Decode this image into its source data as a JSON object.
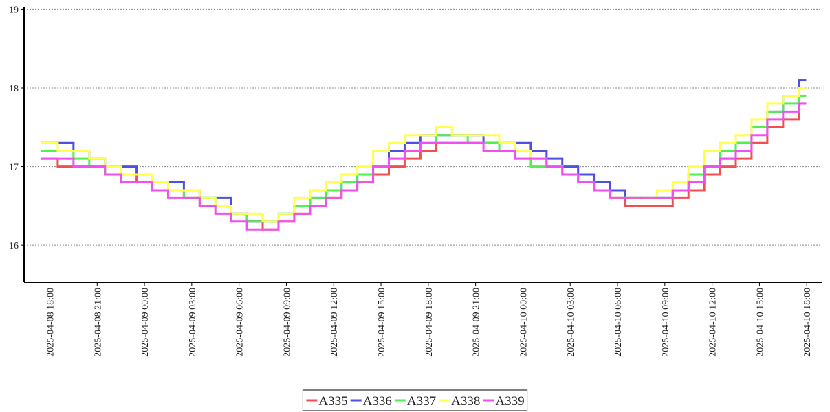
{
  "chart_data": {
    "type": "step-line",
    "x": [
      "2025-04-08 17:30",
      "2025-04-08 18:30",
      "2025-04-08 19:30",
      "2025-04-08 20:30",
      "2025-04-08 21:30",
      "2025-04-08 22:30",
      "2025-04-08 23:30",
      "2025-04-09 00:30",
      "2025-04-09 01:30",
      "2025-04-09 02:30",
      "2025-04-09 03:30",
      "2025-04-09 04:30",
      "2025-04-09 05:30",
      "2025-04-09 06:30",
      "2025-04-09 07:30",
      "2025-04-09 08:30",
      "2025-04-09 09:30",
      "2025-04-09 10:30",
      "2025-04-09 11:30",
      "2025-04-09 12:30",
      "2025-04-09 13:30",
      "2025-04-09 14:30",
      "2025-04-09 15:30",
      "2025-04-09 16:30",
      "2025-04-09 17:30",
      "2025-04-09 18:30",
      "2025-04-09 19:30",
      "2025-04-09 20:30",
      "2025-04-09 21:30",
      "2025-04-09 22:30",
      "2025-04-09 23:30",
      "2025-04-10 00:30",
      "2025-04-10 01:30",
      "2025-04-10 02:30",
      "2025-04-10 03:30",
      "2025-04-10 04:30",
      "2025-04-10 05:30",
      "2025-04-10 06:30",
      "2025-04-10 07:30",
      "2025-04-10 08:30",
      "2025-04-10 09:30",
      "2025-04-10 10:30",
      "2025-04-10 11:30",
      "2025-04-10 12:30",
      "2025-04-10 13:30",
      "2025-04-10 14:30",
      "2025-04-10 15:30",
      "2025-04-10 16:30",
      "2025-04-10 17:30"
    ],
    "series": [
      {
        "name": "A335",
        "color": "#f05050",
        "values": [
          17.1,
          17.0,
          17.0,
          17.0,
          16.9,
          16.9,
          16.8,
          16.7,
          16.7,
          16.6,
          16.5,
          16.5,
          16.4,
          16.3,
          16.2,
          16.3,
          16.4,
          16.5,
          16.6,
          16.7,
          16.8,
          16.9,
          17.0,
          17.1,
          17.2,
          17.3,
          17.3,
          17.3,
          17.3,
          17.2,
          17.2,
          17.1,
          17.0,
          16.9,
          16.8,
          16.7,
          16.6,
          16.5,
          16.5,
          16.5,
          16.6,
          16.7,
          16.9,
          17.0,
          17.1,
          17.3,
          17.5,
          17.6,
          17.8
        ]
      },
      {
        "name": "A336",
        "color": "#5050e0",
        "values": [
          17.3,
          17.3,
          17.2,
          17.1,
          17.0,
          17.0,
          16.9,
          16.8,
          16.8,
          16.7,
          16.6,
          16.6,
          16.4,
          16.3,
          16.3,
          16.4,
          16.5,
          16.6,
          16.7,
          16.8,
          16.9,
          17.0,
          17.2,
          17.3,
          17.4,
          17.4,
          17.4,
          17.4,
          17.3,
          17.3,
          17.3,
          17.2,
          17.1,
          17.0,
          16.9,
          16.8,
          16.7,
          16.6,
          16.6,
          16.6,
          16.7,
          16.8,
          17.0,
          17.1,
          17.3,
          17.5,
          17.7,
          17.9,
          18.1
        ]
      },
      {
        "name": "A337",
        "color": "#50f050",
        "values": [
          17.2,
          17.2,
          17.1,
          17.0,
          16.9,
          16.8,
          16.8,
          16.7,
          16.7,
          16.6,
          16.6,
          16.5,
          16.4,
          16.3,
          16.3,
          16.4,
          16.5,
          16.6,
          16.7,
          16.8,
          16.9,
          17.0,
          17.1,
          17.2,
          17.3,
          17.4,
          17.4,
          17.3,
          17.3,
          17.2,
          17.1,
          17.0,
          17.0,
          16.9,
          16.8,
          16.7,
          16.6,
          16.6,
          16.6,
          16.6,
          16.7,
          16.9,
          17.0,
          17.2,
          17.3,
          17.5,
          17.7,
          17.8,
          17.9
        ]
      },
      {
        "name": "A338",
        "color": "#ffff50",
        "values": [
          17.3,
          17.2,
          17.2,
          17.1,
          17.0,
          16.9,
          16.9,
          16.8,
          16.7,
          16.7,
          16.6,
          16.5,
          16.4,
          16.4,
          16.3,
          16.4,
          16.6,
          16.7,
          16.8,
          16.9,
          17.0,
          17.2,
          17.3,
          17.4,
          17.4,
          17.5,
          17.4,
          17.4,
          17.4,
          17.3,
          17.2,
          17.1,
          17.0,
          16.9,
          16.8,
          16.7,
          16.6,
          16.6,
          16.6,
          16.7,
          16.8,
          17.0,
          17.2,
          17.3,
          17.4,
          17.6,
          17.8,
          17.9,
          18.0
        ]
      },
      {
        "name": "A339",
        "color": "#f050f0",
        "values": [
          17.1,
          17.1,
          17.0,
          17.0,
          16.9,
          16.8,
          16.8,
          16.7,
          16.6,
          16.6,
          16.5,
          16.4,
          16.3,
          16.2,
          16.2,
          16.3,
          16.4,
          16.5,
          16.6,
          16.7,
          16.8,
          17.0,
          17.1,
          17.2,
          17.3,
          17.3,
          17.3,
          17.3,
          17.2,
          17.2,
          17.1,
          17.1,
          17.0,
          16.9,
          16.8,
          16.7,
          16.6,
          16.6,
          16.6,
          16.6,
          16.7,
          16.8,
          17.0,
          17.1,
          17.2,
          17.4,
          17.6,
          17.7,
          17.8
        ]
      }
    ],
    "xlim": [
      "2025-04-08 16:22",
      "2025-04-10 18:57"
    ],
    "xticks": [
      "2025-04-08 18:00",
      "2025-04-08 21:00",
      "2025-04-09 00:00",
      "2025-04-09 03:00",
      "2025-04-09 06:00",
      "2025-04-09 09:00",
      "2025-04-09 12:00",
      "2025-04-09 15:00",
      "2025-04-09 18:00",
      "2025-04-09 21:00",
      "2025-04-10 00:00",
      "2025-04-10 03:00",
      "2025-04-10 06:00",
      "2025-04-10 09:00",
      "2025-04-10 12:00",
      "2025-04-10 15:00",
      "2025-04-10 18:00"
    ],
    "ylim": [
      15.53,
      19.03
    ],
    "yticks": [
      16,
      17,
      18,
      19
    ],
    "grid": true,
    "legend": "bottom"
  }
}
